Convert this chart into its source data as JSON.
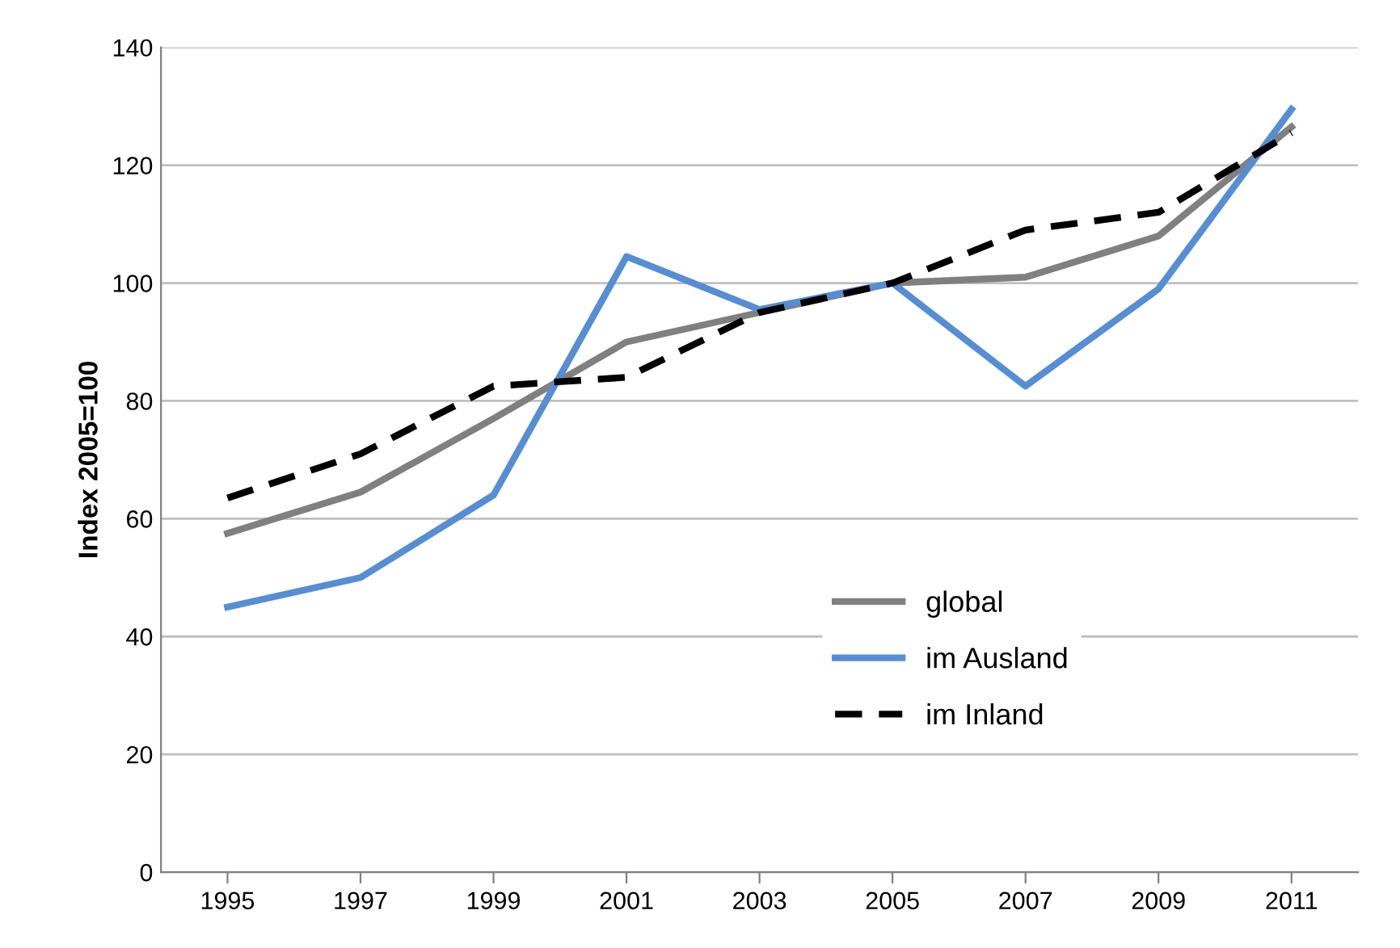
{
  "chart_data": {
    "type": "line",
    "ylabel": "Index 2005=100",
    "categories": [
      "1995",
      "1997",
      "1999",
      "2001",
      "2003",
      "2005",
      "2007",
      "2009",
      "2011"
    ],
    "series": [
      {
        "name": "global",
        "color": "#808080",
        "values": [
          57.5,
          64.5,
          77,
          90,
          95,
          100,
          101,
          108,
          126.5
        ],
        "line_style": "solid"
      },
      {
        "name": "im Ausland",
        "color": "#558ed5",
        "values": [
          45,
          50,
          64,
          104.5,
          95.5,
          100,
          82.5,
          99,
          129.5
        ],
        "line_style": "solid"
      },
      {
        "name": "im Inland",
        "color": "#000000",
        "values": [
          63.5,
          71,
          82.5,
          84,
          95,
          100,
          109,
          112,
          125.5
        ],
        "line_style": "dashed"
      }
    ],
    "ylim": [
      0,
      140
    ],
    "yticks": [
      0,
      20,
      40,
      60,
      80,
      100,
      120,
      140
    ],
    "grid": "y",
    "legend": "lower right",
    "marker": "none"
  }
}
